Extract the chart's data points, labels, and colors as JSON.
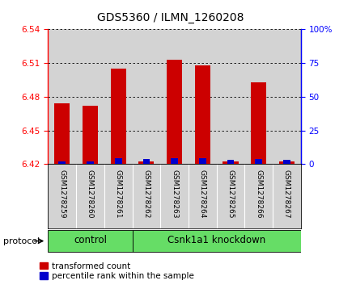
{
  "title": "GDS5360 / ILMN_1260208",
  "samples": [
    "GSM1278259",
    "GSM1278260",
    "GSM1278261",
    "GSM1278262",
    "GSM1278263",
    "GSM1278264",
    "GSM1278265",
    "GSM1278266",
    "GSM1278267"
  ],
  "red_values": [
    6.474,
    6.472,
    6.505,
    6.422,
    6.513,
    6.508,
    6.422,
    6.493,
    6.422
  ],
  "blue_values": [
    6.4225,
    6.4225,
    6.4255,
    6.4245,
    6.4255,
    6.4255,
    6.4235,
    6.4245,
    6.4235
  ],
  "ylim_left": [
    6.42,
    6.54
  ],
  "ylim_right": [
    0,
    100
  ],
  "yticks_left": [
    6.42,
    6.45,
    6.48,
    6.51,
    6.54
  ],
  "yticks_right": [
    0,
    25,
    50,
    75,
    100
  ],
  "baseline": 6.42,
  "red_color": "#CC0000",
  "blue_color": "#0000CC",
  "bar_width": 0.55,
  "blue_bar_width": 0.25,
  "plot_bg_color": "#d3d3d3",
  "group_bg_color": "#d3d3d3",
  "green_color": "#66DD66",
  "control_label": "control",
  "knockdown_label": "Csnk1a1 knockdown",
  "legend_red_label": "transformed count",
  "legend_blue_label": "percentile rank within the sample",
  "protocol_label": "protocol",
  "right_ytick_labels": [
    "0",
    "25",
    "50",
    "75",
    "100%"
  ]
}
